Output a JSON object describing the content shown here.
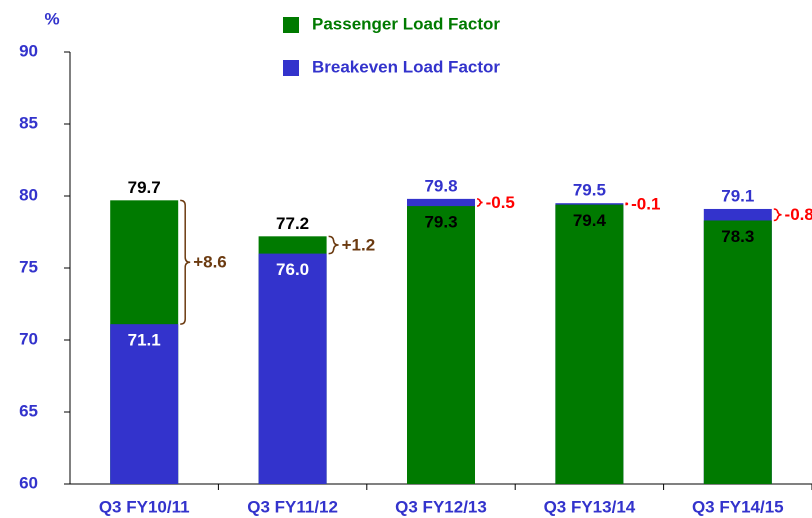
{
  "chart_data": {
    "type": "bar",
    "y_label": "%",
    "categories": [
      "Q3 FY10/11",
      "Q3 FY11/12",
      "Q3 FY12/13",
      "Q3 FY13/14",
      "Q3 FY14/15"
    ],
    "series": [
      {
        "name": "Passenger Load Factor",
        "color": "#007a00",
        "values": [
          79.7,
          77.2,
          79.3,
          79.4,
          78.3
        ]
      },
      {
        "name": "Breakeven Load Factor",
        "color": "#3333cc",
        "values": [
          71.1,
          76.0,
          79.8,
          79.5,
          79.1
        ],
        "value_labels": [
          "71.1",
          "76.0",
          "79.8",
          "79.5",
          "79.1"
        ]
      }
    ],
    "differences": {
      "values": [
        8.6,
        1.2,
        -0.5,
        -0.1,
        -0.8
      ],
      "value_labels": [
        "+8.6",
        "+1.2",
        "-0.5",
        "-0.1",
        "-0.8"
      ],
      "positive_color": "#6b3a10",
      "negative_color": "#ff0000"
    },
    "ylim": [
      60,
      90
    ],
    "yticks": [
      60,
      65,
      70,
      75,
      80,
      85,
      90
    ]
  }
}
